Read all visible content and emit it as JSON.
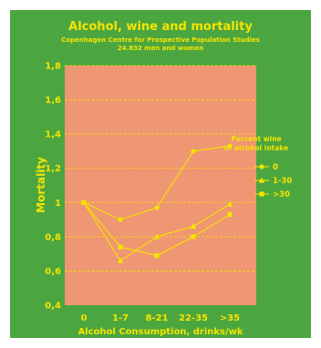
{
  "chart_data": {
    "type": "line",
    "title": "Alcohol, wine and mortality",
    "subtitle_lines": [
      "Copenhagen Centre for Prospective Population Studies",
      "24.832 men and women"
    ],
    "xlabel": "Alcohol Consumption, drinks/wk",
    "ylabel": "Mortality",
    "categories": [
      "0",
      "1-7",
      "8-21",
      "22-35",
      ">35"
    ],
    "yticks": [
      "0,4",
      "0,6",
      "0,8",
      "1",
      "1,2",
      "1,4",
      "1,6",
      "1,8"
    ],
    "ylim": [
      0.4,
      1.8
    ],
    "grid": true,
    "legend_title_lines": [
      "Percent wine",
      "of alcohol intake"
    ],
    "legend_position": "right",
    "series": [
      {
        "name": "0",
        "marker": "circle",
        "values": [
          1.0,
          0.9,
          0.97,
          1.3,
          1.33
        ]
      },
      {
        "name": "1-30",
        "marker": "triangle",
        "values": [
          1.0,
          0.66,
          0.8,
          0.86,
          0.99
        ]
      },
      {
        "name": ">30",
        "marker": "square",
        "values": [
          1.0,
          0.74,
          0.69,
          0.8,
          0.93
        ]
      }
    ]
  },
  "colors": {
    "frame": "#4ca640",
    "plot_area": "#ef9672",
    "text": "#f5e400",
    "lines": "#f5e400"
  }
}
